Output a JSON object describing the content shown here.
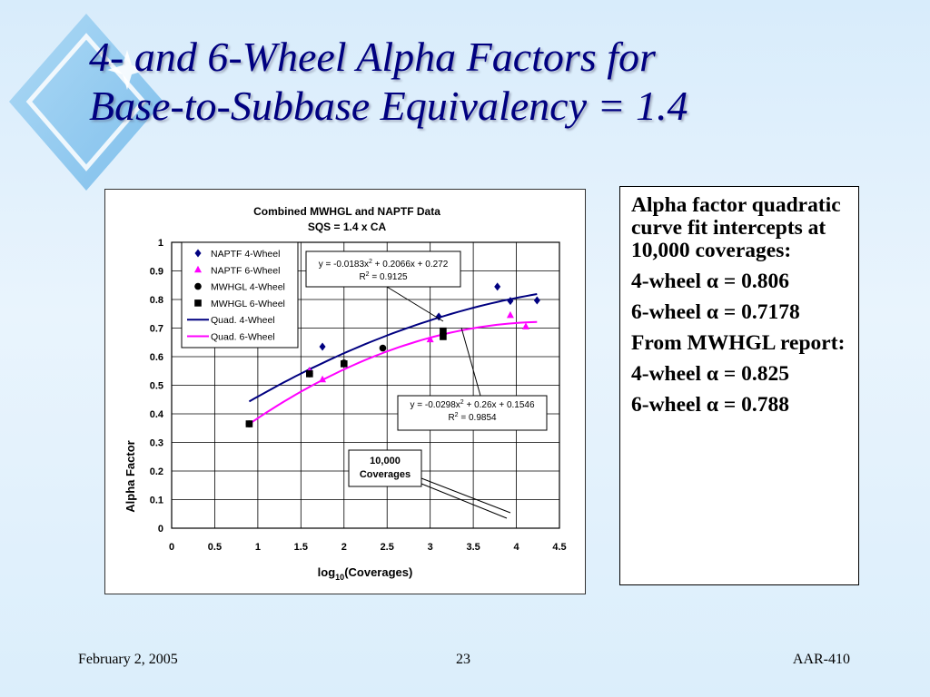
{
  "slide": {
    "title_line1": "4- and 6-Wheel Alpha Factors for",
    "title_line2": "Base-to-Subbase Equivalency = 1.4"
  },
  "info": {
    "intro": "Alpha factor quadratic curve fit intercepts at 10,000 coverages:",
    "fit_4wheel": "4-wheel α = 0.806",
    "fit_6wheel": "6-wheel α = 0.7178",
    "report_heading": "From MWHGL report:",
    "report_4wheel": "4-wheel α = 0.825",
    "report_6wheel": "6-wheel α = 0.788"
  },
  "footer": {
    "date": "February 2, 2005",
    "page": "23",
    "id": "AAR-410"
  },
  "chart_data": {
    "type": "scatter",
    "title": "Combined MWHGL and NAPTF Data",
    "subtitle": "SQS = 1.4 x CA",
    "xlabel": "log",
    "xlabel_sub": "10",
    "xlabel_rest": "(Coverages)",
    "ylabel": "Alpha Factor",
    "xlim": [
      0,
      4.5
    ],
    "ylim": [
      0,
      1
    ],
    "xticks": [
      "0",
      "0.5",
      "1",
      "1.5",
      "2",
      "2.5",
      "3",
      "3.5",
      "4",
      "4.5"
    ],
    "yticks": [
      "0",
      "0.1",
      "0.2",
      "0.3",
      "0.4",
      "0.5",
      "0.6",
      "0.7",
      "0.8",
      "0.9",
      "1"
    ],
    "grid": true,
    "legend_position": "top-left",
    "series": [
      {
        "name": "NAPTF 4-Wheel",
        "marker": "diamond",
        "color": "#000080",
        "points": [
          [
            1.6,
            0.55
          ],
          [
            1.75,
            0.635
          ],
          [
            3.1,
            0.74
          ],
          [
            3.78,
            0.845
          ],
          [
            3.93,
            0.795
          ],
          [
            4.24,
            0.797
          ]
        ]
      },
      {
        "name": "NAPTF 6-Wheel",
        "marker": "triangle",
        "color": "#ff00ff",
        "points": [
          [
            1.6,
            0.55
          ],
          [
            1.75,
            0.52
          ],
          [
            3.0,
            0.66
          ],
          [
            3.93,
            0.745
          ],
          [
            4.11,
            0.705
          ]
        ]
      },
      {
        "name": "MWHGL 4-Wheel",
        "marker": "circle",
        "color": "#000000",
        "points": [
          [
            0.9,
            0.365
          ],
          [
            1.6,
            0.54
          ],
          [
            2.0,
            0.578
          ],
          [
            2.45,
            0.63
          ],
          [
            3.15,
            0.68
          ]
        ]
      },
      {
        "name": "MWHGL 6-Wheel",
        "marker": "square",
        "color": "#000000",
        "points": [
          [
            0.9,
            0.365
          ],
          [
            1.6,
            0.54
          ],
          [
            2.0,
            0.575
          ],
          [
            3.15,
            0.67
          ],
          [
            3.15,
            0.69
          ]
        ]
      },
      {
        "name": "Quad. 4-Wheel",
        "line": true,
        "color": "#000080",
        "coef": [
          -0.0183,
          0.2066,
          0.272
        ],
        "xrange": [
          0.9,
          4.24
        ]
      },
      {
        "name": "Quad. 6-Wheel",
        "line": true,
        "color": "#ff00ff",
        "coef": [
          -0.0298,
          0.26,
          0.1546
        ],
        "xrange": [
          0.9,
          4.24
        ]
      }
    ],
    "annotations": {
      "eq4": "y = -0.0183x",
      "eq4_rest": " + 0.2066x + 0.272",
      "r2_4": " = 0.9125",
      "eq6": "y = -0.0298x",
      "eq6_rest": " + 0.26x + 0.1546",
      "r2_6": " = 0.9854",
      "exp": "2",
      "r": "R",
      "coverage_line1": "10,000",
      "coverage_line2": "Coverages"
    }
  }
}
